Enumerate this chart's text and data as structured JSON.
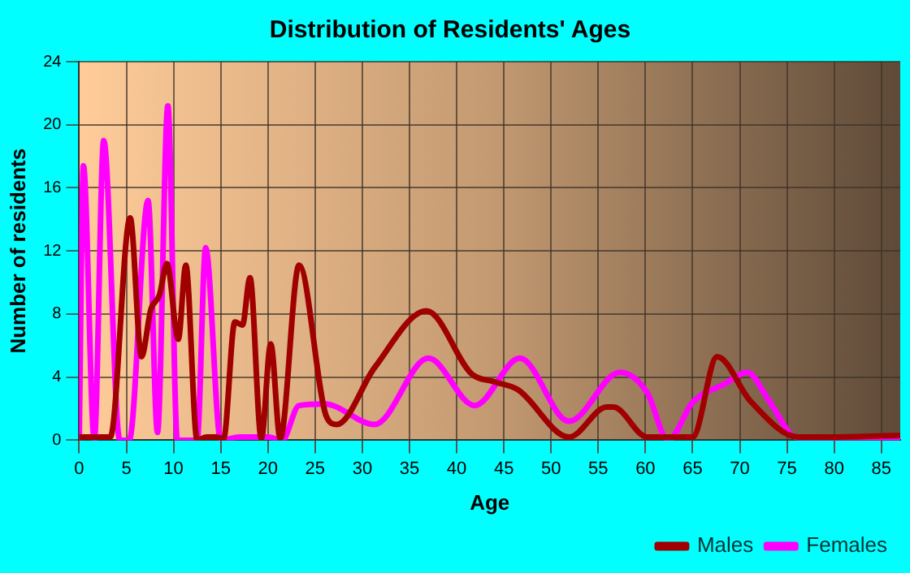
{
  "chart_data": {
    "type": "line",
    "title": "Distribution of Residents' Ages",
    "xlabel": "Age",
    "ylabel": "Number of residents",
    "xlim": [
      0,
      87
    ],
    "xticks": [
      0,
      5,
      10,
      15,
      20,
      25,
      30,
      35,
      40,
      45,
      50,
      55,
      60,
      65,
      70,
      75,
      80,
      85
    ],
    "ylim": [
      0,
      24
    ],
    "yticks": [
      0,
      4,
      8,
      12,
      16,
      20,
      24
    ],
    "grid": true,
    "legend": "bottom right",
    "marker": "none",
    "line_style": "solid",
    "series": [
      {
        "name": "Males",
        "color": "#a00000",
        "x": [
          0,
          1,
          2,
          3.3,
          5.4,
          6.6,
          7.6,
          8.5,
          9.3,
          10.5,
          11.3,
          12.5,
          13.5,
          14.5,
          15.3,
          16.5,
          17.3,
          18.1,
          19.3,
          20.3,
          21.3,
          23.3,
          26.2,
          27.3,
          31.3,
          36.8,
          41.6,
          44,
          46.5,
          51.9,
          55.9,
          56.6,
          60.2,
          63,
          65,
          67.6,
          71.1,
          76.2,
          80,
          87
        ],
        "values": [
          0.2,
          0.2,
          0.2,
          0.2,
          14.1,
          5.3,
          8.3,
          9.2,
          11.2,
          6.4,
          11.1,
          0,
          0.2,
          0.2,
          0.1,
          7.5,
          7.3,
          10.3,
          0.1,
          6.1,
          0.1,
          11.1,
          1.5,
          1,
          4.6,
          8.2,
          4.2,
          3.7,
          3.2,
          0.2,
          2.1,
          2.1,
          0.2,
          0.2,
          0.2,
          5.3,
          2.5,
          0.2,
          0.2,
          0.3
        ]
      },
      {
        "name": "Females",
        "color": "#ff00ff",
        "x": [
          0,
          0.45,
          1.6,
          2.6,
          4.3,
          5.3,
          7.3,
          8.3,
          9.4,
          10.4,
          12.5,
          13.4,
          15,
          17,
          20,
          21.5,
          23.3,
          26,
          31.3,
          37,
          41.9,
          46.7,
          51.9,
          57.3,
          60.2,
          62.4,
          65,
          68.5,
          70.8,
          73.1,
          75.9,
          80,
          87
        ],
        "values": [
          0,
          17.4,
          0,
          19,
          0,
          0,
          15.2,
          0.5,
          21.2,
          0,
          0,
          12.2,
          0,
          0.2,
          0.2,
          0,
          2.2,
          2.3,
          1,
          5.2,
          2.2,
          5.2,
          1.2,
          4.3,
          3,
          0,
          2.4,
          3.6,
          4.3,
          2.5,
          0.2,
          0,
          0
        ]
      }
    ]
  }
}
